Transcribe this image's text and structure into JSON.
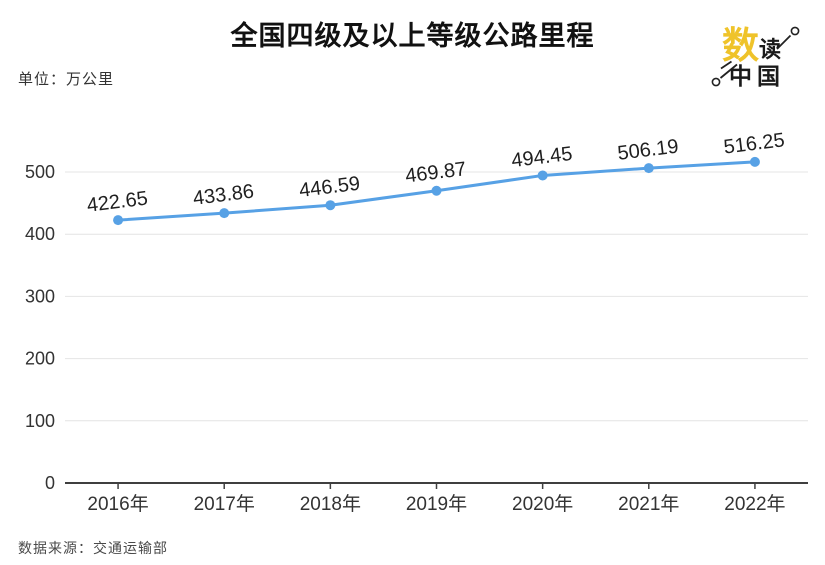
{
  "header": {
    "title": "全国四级及以上等级公路里程",
    "unit_label": "单位：万公里"
  },
  "logo": {
    "name": "数读中国",
    "char_shu": "数",
    "char_du": "读",
    "char_zhongguo": "中国",
    "gold_color": "#efc32a",
    "ink_color": "#1a1a1a"
  },
  "footer": {
    "source": "数据来源：交通运输部"
  },
  "chart_data": {
    "type": "line",
    "title": "全国四级及以上等级公路里程",
    "unit": "万公里",
    "categories": [
      "2016年",
      "2017年",
      "2018年",
      "2019年",
      "2020年",
      "2021年",
      "2022年"
    ],
    "series": [
      {
        "name": "全国四级及以上等级公路里程",
        "values": [
          422.65,
          433.86,
          446.59,
          469.87,
          494.45,
          506.19,
          516.25
        ]
      }
    ],
    "data_labels": [
      "422.65",
      "433.86",
      "446.59",
      "469.87",
      "494.45",
      "506.19",
      "516.25"
    ],
    "ylim": [
      0,
      500
    ],
    "y_ticks": [
      0,
      100,
      200,
      300,
      400,
      500
    ],
    "grid": true,
    "legend": "none",
    "line_color": "#57a1e5",
    "marker_color": "#57a1e5",
    "value_label_color": "#1f1f1f",
    "axis_label_color": "#333333",
    "gridline_color": "#e4e4e4",
    "axis_line_color": "#3f3f3f",
    "source": "数据来源：交通运输部"
  }
}
